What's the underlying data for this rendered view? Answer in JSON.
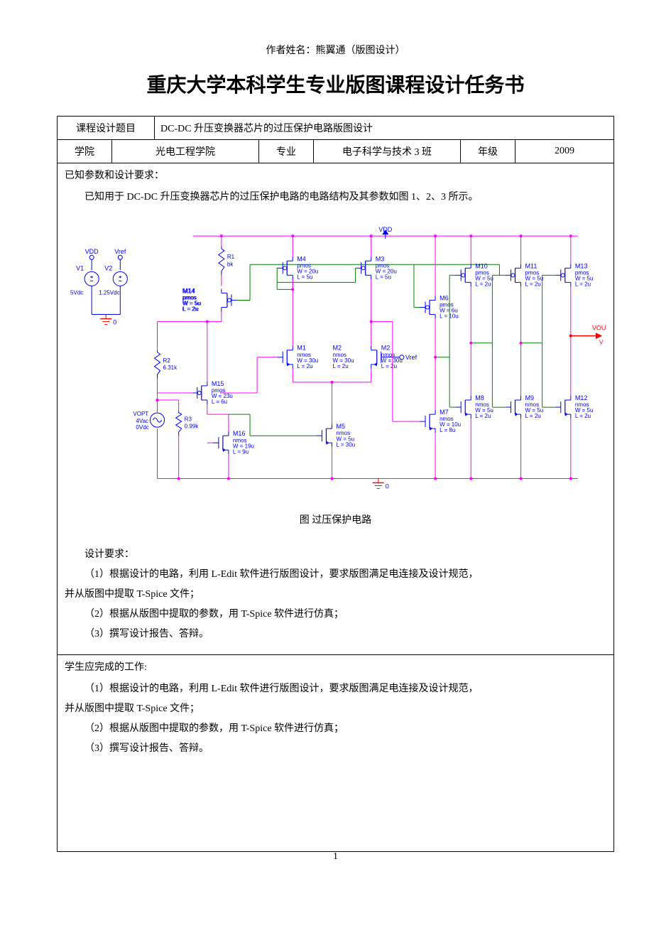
{
  "header": {
    "author_line": "作者姓名：熊翼通（版图设计）"
  },
  "title": "重庆大学本科学生专业版图课程设计任务书",
  "info_row1": {
    "label": "课程设计题目",
    "value": "DC-DC 升压变换器芯片的过压保护电路版图设计"
  },
  "info_row2": {
    "col1_label": "学院",
    "col1_value": "光电工程学院",
    "col2_label": "专业",
    "col2_value": "电子科学与技术 3 班",
    "col3_label": "年级",
    "col3_value": "2009"
  },
  "requirements": {
    "heading": "已知参数和设计要求：",
    "intro": "已知用于 DC-DC 升压变换器芯片的过压保护电路的电路结构及其参数如图 1、2、3 所示。",
    "fig_caption": "图  过压保护电路",
    "design_heading": "设计要求：",
    "d1": "（1）根据设计的电路，利用 L-Edit 软件进行版图设计，要求版图满足电连接及设计规范，",
    "d1b": "并从版图中提取 T-Spice 文件；",
    "d2": "（2）根据从版图中提取的参数，用 T-Spice 软件进行仿真；",
    "d3": "（3）撰写设计报告、答辩。"
  },
  "student_work": {
    "heading": "学生应完成的工作:",
    "s1": "（1）根据设计的电路，利用 L-Edit 软件进行版图设计，要求版图满足电连接及设计规范，",
    "s1b": "并从版图中提取 T-Spice 文件；",
    "s2": "（2）根据从版图中提取的参数，用 T-Spice 软件进行仿真；",
    "s3": "（3）撰写设计报告、答辩。"
  },
  "page_number": "1",
  "circuit": {
    "colors": {
      "wire_blue": "#0000ff",
      "wire_magenta": "#ff00ff",
      "wire_green": "#008000",
      "wire_red": "#ff0000",
      "text": "#0000ff",
      "gnd_red": "#ff0000"
    },
    "font_size_label": 9,
    "font_size_small": 8,
    "vdd_label": "VDD",
    "vref_label": "Vref",
    "vout_label": "VOUT",
    "sources": {
      "V1": {
        "name": "V1",
        "val": "5Vdc"
      },
      "V2": {
        "name": "V2",
        "val": "1.25Vdc"
      },
      "VOPT": {
        "name": "VOPT",
        "v1": "4Vac",
        "v2": "0Vdc"
      }
    },
    "resistors": {
      "R1": {
        "name": "R1",
        "val": "bk"
      },
      "R2": {
        "name": "R2",
        "val": "6.31k"
      },
      "R3": {
        "name": "R3",
        "val": "0.99k"
      }
    },
    "mosfets": {
      "M1": {
        "name": "M1",
        "type": "nmos",
        "W": "30u",
        "L": "2u"
      },
      "M2": {
        "name": "M2",
        "type": "nmos",
        "W": "30u",
        "L": "2u"
      },
      "M3": {
        "name": "M3",
        "type": "pmos",
        "W": "20u",
        "L": "5u"
      },
      "M4": {
        "name": "M4",
        "type": "pmos",
        "W": "20u",
        "L": "5u"
      },
      "M5": {
        "name": "M5",
        "type": "nmos",
        "W": "5u",
        "L": "30u"
      },
      "M6": {
        "name": "M6",
        "type": "pmos",
        "W": "6u",
        "L": "10u"
      },
      "M7": {
        "name": "M7",
        "type": "nmos",
        "W": "10u",
        "L": "8u"
      },
      "M8": {
        "name": "M8",
        "type": "nmos",
        "W": "5u",
        "L": "2u"
      },
      "M9": {
        "name": "M9",
        "type": "nmos",
        "W": "5u",
        "L": "2u"
      },
      "M10": {
        "name": "M10",
        "type": "pmos",
        "W": "5u",
        "L": "2u"
      },
      "M11": {
        "name": "M11",
        "type": "pmos",
        "W": "5u",
        "L": "2u"
      },
      "M12": {
        "name": "M12",
        "type": "nmos",
        "W": "5u",
        "L": "2u"
      },
      "M13": {
        "name": "M13",
        "type": "pmos",
        "W": "5u",
        "L": "2u"
      },
      "M14": {
        "name": "M14",
        "type": "pmos",
        "W": "5u",
        "L": "2u"
      },
      "M15": {
        "name": "M15",
        "type": "pmos",
        "W": "23u",
        "L": "6u"
      },
      "M16": {
        "name": "M16",
        "type": "nmos",
        "W": "19u",
        "L": "9u"
      }
    },
    "gnd_labels": [
      "0",
      "0"
    ]
  }
}
